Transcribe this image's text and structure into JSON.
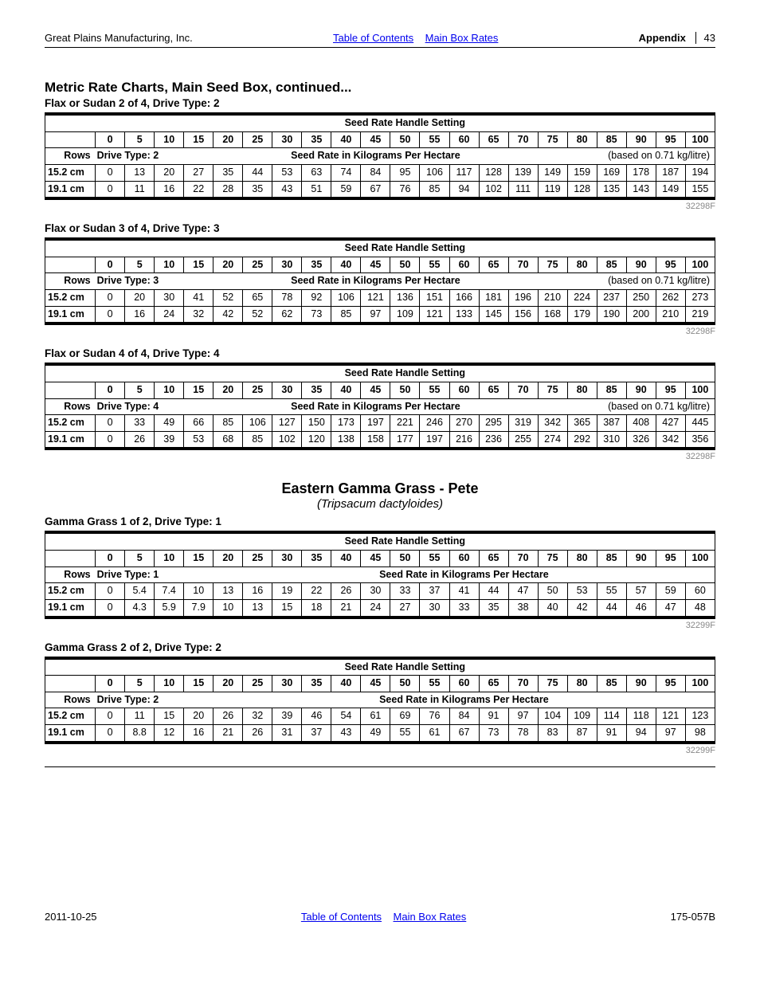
{
  "header": {
    "company": "Great Plains Manufacturing, Inc.",
    "link_toc": "Table of Contents",
    "link_rates": "Main Box Rates",
    "appendix_label": "Appendix",
    "page": "43"
  },
  "footer": {
    "date": "2011-10-25",
    "link_toc": "Table of Contents",
    "link_rates": "Main Box Rates",
    "doc": "175-057B"
  },
  "section_title": "Metric Rate Charts, Main Seed Box, continued...",
  "settings_cols": [
    "0",
    "5",
    "10",
    "15",
    "20",
    "25",
    "30",
    "35",
    "40",
    "45",
    "50",
    "55",
    "60",
    "65",
    "70",
    "75",
    "80",
    "85",
    "90",
    "95",
    "100"
  ],
  "hdr_setting": "Seed Rate Handle Setting",
  "hdr_rows": "Rows",
  "hdr_rate": "Seed Rate in Kilograms Per Hectare",
  "species": {
    "name": "Eastern Gamma Grass - Pete",
    "latin": "(Tripsacum dactyloides)"
  },
  "tables": [
    {
      "subtitle": "Flax or Sudan 2 of 4, Drive Type: 2",
      "drive": "Drive Type: 2",
      "based": "(based on 0.71 kg/litre)",
      "ref": "32298F",
      "rows": [
        {
          "label": "15.2 cm",
          "v": [
            "0",
            "13",
            "20",
            "27",
            "35",
            "44",
            "53",
            "63",
            "74",
            "84",
            "95",
            "106",
            "117",
            "128",
            "139",
            "149",
            "159",
            "169",
            "178",
            "187",
            "194"
          ]
        },
        {
          "label": "19.1 cm",
          "v": [
            "0",
            "11",
            "16",
            "22",
            "28",
            "35",
            "43",
            "51",
            "59",
            "67",
            "76",
            "85",
            "94",
            "102",
            "111",
            "119",
            "128",
            "135",
            "143",
            "149",
            "155"
          ]
        }
      ]
    },
    {
      "subtitle": "Flax or Sudan 3 of 4, Drive Type: 3",
      "drive": "Drive Type: 3",
      "based": "(based on 0.71 kg/litre)",
      "ref": "32298F",
      "rows": [
        {
          "label": "15.2 cm",
          "v": [
            "0",
            "20",
            "30",
            "41",
            "52",
            "65",
            "78",
            "92",
            "106",
            "121",
            "136",
            "151",
            "166",
            "181",
            "196",
            "210",
            "224",
            "237",
            "250",
            "262",
            "273"
          ]
        },
        {
          "label": "19.1 cm",
          "v": [
            "0",
            "16",
            "24",
            "32",
            "42",
            "52",
            "62",
            "73",
            "85",
            "97",
            "109",
            "121",
            "133",
            "145",
            "156",
            "168",
            "179",
            "190",
            "200",
            "210",
            "219"
          ]
        }
      ]
    },
    {
      "subtitle": "Flax or Sudan 4 of 4, Drive Type: 4",
      "drive": "Drive Type: 4",
      "based": "(based on 0.71 kg/litre)",
      "ref": "32298F",
      "rows": [
        {
          "label": "15.2 cm",
          "v": [
            "0",
            "33",
            "49",
            "66",
            "85",
            "106",
            "127",
            "150",
            "173",
            "197",
            "221",
            "246",
            "270",
            "295",
            "319",
            "342",
            "365",
            "387",
            "408",
            "427",
            "445"
          ]
        },
        {
          "label": "19.1 cm",
          "v": [
            "0",
            "26",
            "39",
            "53",
            "68",
            "85",
            "102",
            "120",
            "138",
            "158",
            "177",
            "197",
            "216",
            "236",
            "255",
            "274",
            "292",
            "310",
            "326",
            "342",
            "356"
          ]
        }
      ]
    },
    {
      "subtitle": "Gamma Grass 1 of 2, Drive Type: 1",
      "drive": "Drive Type: 1",
      "based": "",
      "ref": "32299F",
      "rows": [
        {
          "label": "15.2 cm",
          "v": [
            "0",
            "5.4",
            "7.4",
            "10",
            "13",
            "16",
            "19",
            "22",
            "26",
            "30",
            "33",
            "37",
            "41",
            "44",
            "47",
            "50",
            "53",
            "55",
            "57",
            "59",
            "60"
          ]
        },
        {
          "label": "19.1 cm",
          "v": [
            "0",
            "4.3",
            "5.9",
            "7.9",
            "10",
            "13",
            "15",
            "18",
            "21",
            "24",
            "27",
            "30",
            "33",
            "35",
            "38",
            "40",
            "42",
            "44",
            "46",
            "47",
            "48"
          ]
        }
      ]
    },
    {
      "subtitle": "Gamma Grass 2 of 2, Drive Type: 2",
      "drive": "Drive Type: 2",
      "based": "",
      "ref": "32299F",
      "rows": [
        {
          "label": "15.2 cm",
          "v": [
            "0",
            "11",
            "15",
            "20",
            "26",
            "32",
            "39",
            "46",
            "54",
            "61",
            "69",
            "76",
            "84",
            "91",
            "97",
            "104",
            "109",
            "114",
            "118",
            "121",
            "123"
          ]
        },
        {
          "label": "19.1 cm",
          "v": [
            "0",
            "8.8",
            "12",
            "16",
            "21",
            "26",
            "31",
            "37",
            "43",
            "49",
            "55",
            "61",
            "67",
            "73",
            "78",
            "83",
            "87",
            "91",
            "94",
            "97",
            "98"
          ]
        }
      ]
    }
  ]
}
